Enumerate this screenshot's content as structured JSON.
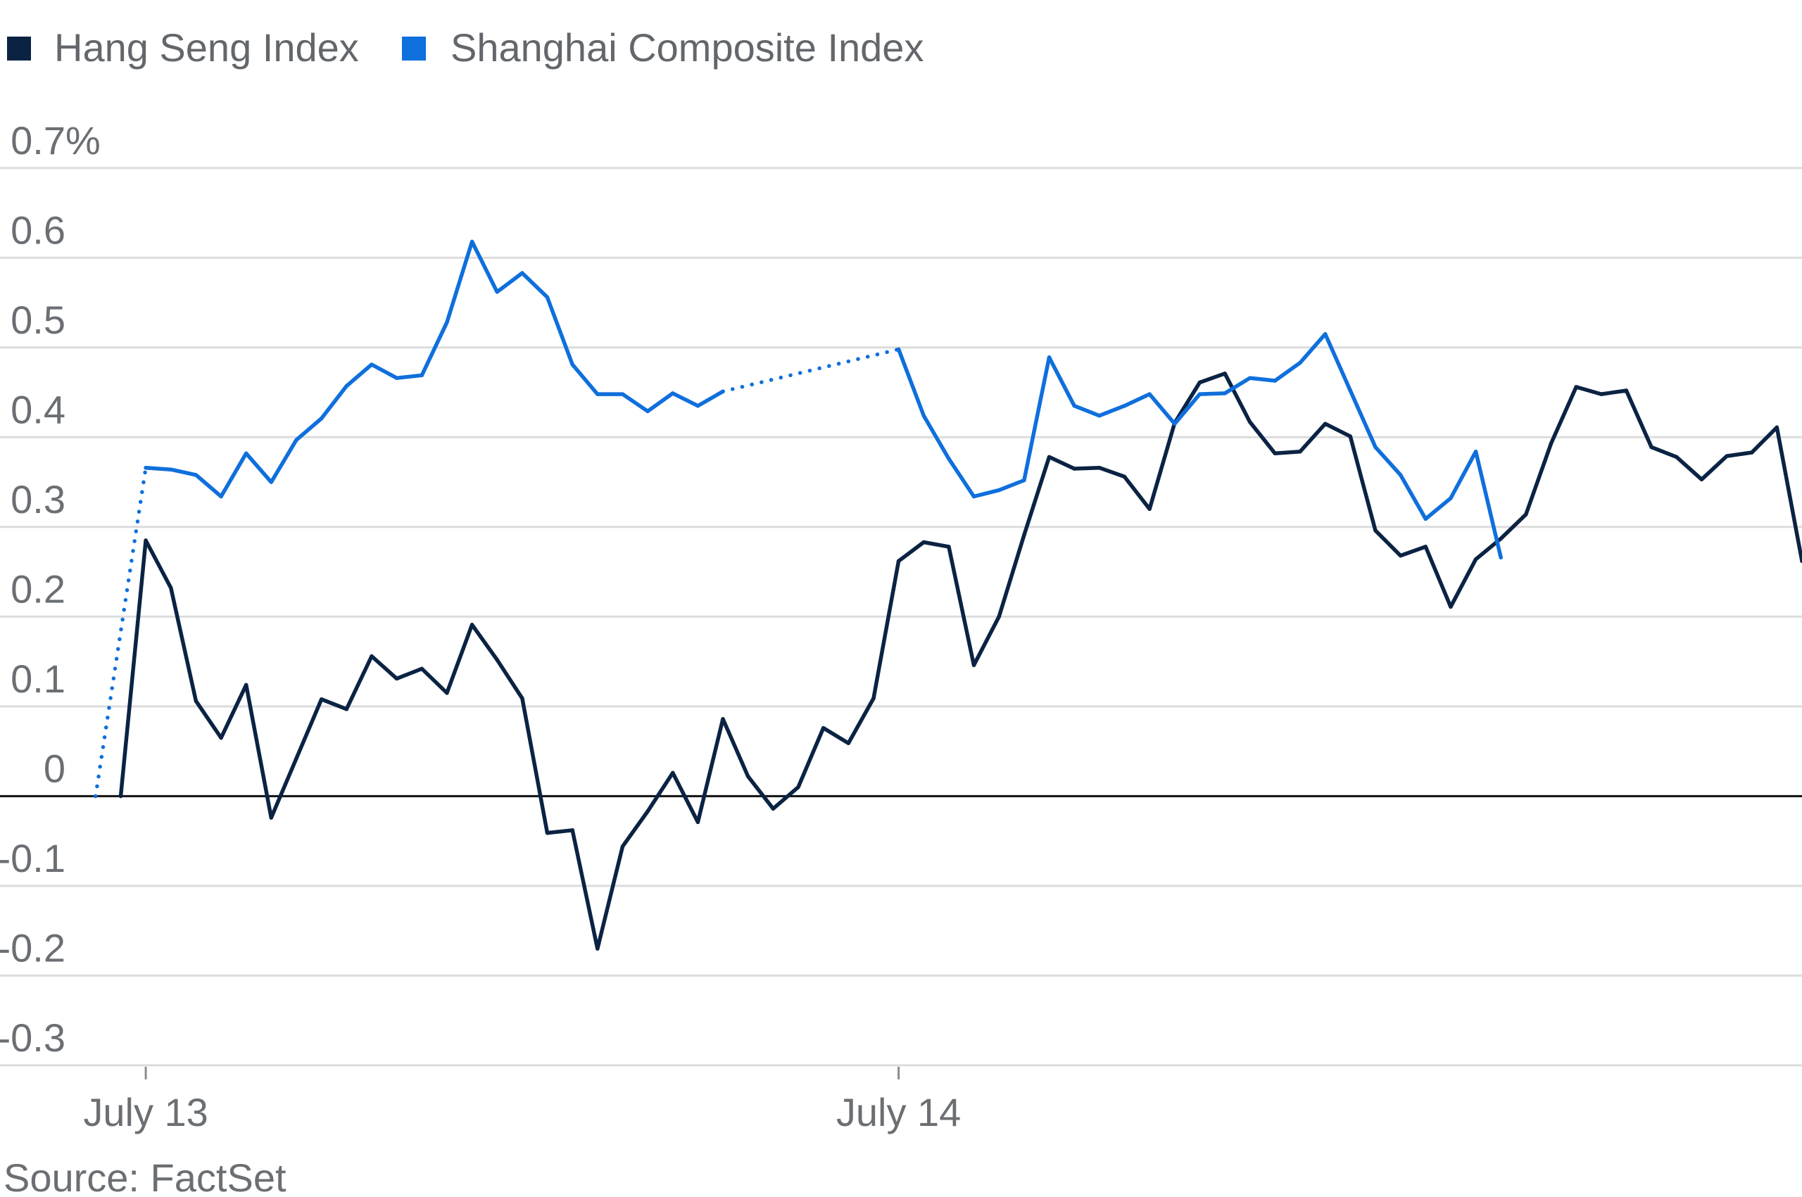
{
  "chart_data": {
    "type": "line",
    "legend": "top-left",
    "grid": true,
    "ylim": [
      -0.3,
      0.7
    ],
    "y_ticks": [
      {
        "value": 0.7,
        "label": "0.7%"
      },
      {
        "value": 0.6,
        "label": "0.6"
      },
      {
        "value": 0.5,
        "label": "0.5"
      },
      {
        "value": 0.4,
        "label": "0.4"
      },
      {
        "value": 0.3,
        "label": "0.3"
      },
      {
        "value": 0.2,
        "label": "0.2"
      },
      {
        "value": 0.1,
        "label": "0.1"
      },
      {
        "value": 0,
        "label": "0"
      },
      {
        "value": -0.1,
        "label": "-0.1"
      },
      {
        "value": -0.2,
        "label": "-0.2"
      },
      {
        "value": -0.3,
        "label": "-0.3"
      }
    ],
    "x_ticks": [
      {
        "index": 2,
        "label": "July 13"
      },
      {
        "index": 32,
        "label": "July 14"
      }
    ],
    "reference_line": {
      "value": 0,
      "color": "#111111"
    },
    "series": [
      {
        "name": "Hang Seng Index",
        "color": "#0b2343",
        "values": [
          null,
          0,
          0.285,
          0.232,
          0.106,
          0.065,
          0.124,
          -0.024,
          0.042,
          0.108,
          0.097,
          0.156,
          0.131,
          0.142,
          0.115,
          0.191,
          0.152,
          0.109,
          -0.041,
          -0.038,
          -0.17,
          -0.056,
          -0.017,
          0.026,
          -0.029,
          0.086,
          0.022,
          -0.014,
          0.01,
          0.076,
          0.059,
          0.109,
          0.262,
          0.283,
          0.278,
          0.146,
          0.2,
          0.291,
          0.378,
          0.365,
          0.366,
          0.356,
          0.32,
          0.416,
          0.461,
          0.471,
          0.417,
          0.382,
          0.384,
          0.415,
          0.401,
          0.296,
          0.268,
          0.278,
          0.211,
          0.264,
          0.287,
          0.314,
          0.393,
          0.456,
          0.448,
          0.452,
          0.389,
          0.378,
          0.353,
          0.379,
          0.383,
          0.411,
          0.262
        ]
      },
      {
        "name": "Shanghai Composite Index",
        "color": "#0f6fdc",
        "values": [
          0,
          null,
          0.366,
          0.364,
          0.358,
          0.334,
          0.382,
          0.35,
          0.397,
          0.421,
          0.457,
          0.481,
          0.466,
          0.469,
          0.528,
          0.618,
          0.562,
          0.583,
          0.556,
          0.481,
          0.448,
          0.448,
          0.429,
          0.449,
          0.435,
          0.451,
          null,
          null,
          null,
          null,
          null,
          null,
          0.498,
          0.424,
          0.376,
          0.334,
          0.341,
          0.352,
          0.489,
          0.435,
          0.424,
          0.435,
          0.448,
          0.415,
          0.448,
          0.449,
          0.466,
          0.463,
          0.483,
          0.515,
          0.452,
          0.389,
          0.358,
          0.309,
          0.332,
          0.384,
          0.266,
          null,
          null,
          null,
          null,
          null,
          null,
          null,
          null,
          null,
          null,
          null,
          null
        ]
      }
    ]
  },
  "source": "Source: FactSet"
}
